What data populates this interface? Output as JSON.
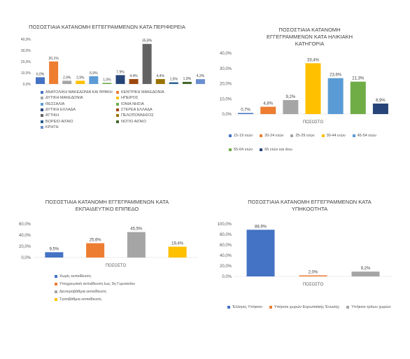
{
  "chart_data": [
    {
      "type": "bar",
      "title": "ΠΟΣΟΣΤΙΑΙΑ ΚΑΤΑΝΟΜΗ ΕΓΓΕΓΡΑΜΜΕΝΩΝ ΚΑΤΑ ΠΕΡΙΦΕΡΕΙΑ",
      "ylim": [
        0,
        40
      ],
      "yticks": [
        "0,0%",
        "10,0%",
        "20,0%",
        "30,0%",
        "40,0%"
      ],
      "grid": false,
      "legend_position": "bottom",
      "series": [
        {
          "name": "ΑΝΑΤΟΛΙΚΗ ΜΑΚΕΔΟΝΙΑ ΚΑΙ ΘΡΑΚΗ",
          "value": 6.0,
          "label": "6,0%",
          "color": "#4472C4"
        },
        {
          "name": "ΚΕΝΤΡΙΚΗ ΜΑΚΕΔΟΝΙΑ",
          "value": 20.1,
          "label": "20,1%",
          "color": "#ED7D31"
        },
        {
          "name": "ΔΥΤΙΚΗ ΜΑΚΕΔΟΝΙΑ",
          "value": 2.9,
          "label": "2,9%",
          "color": "#A5A5A5"
        },
        {
          "name": "ΗΠΕΙΡΟΣ",
          "value": 2.9,
          "label": "2,9%",
          "color": "#FFC000"
        },
        {
          "name": "ΘΕΣΣΑΛΙΑ",
          "value": 6.9,
          "label": "6,9%",
          "color": "#5B9BD5"
        },
        {
          "name": "ΙΟΝΙΑ ΝΗΣΙΑ",
          "value": 1.0,
          "label": "1,0%",
          "color": "#70AD47"
        },
        {
          "name": "ΔΥΤΙΚΗ ΕΛΛΑΔΑ",
          "value": 7.9,
          "label": "7,9%",
          "color": "#264478"
        },
        {
          "name": "ΣΤΕΡΕΑ ΕΛΛΑΔΑ",
          "value": 4.4,
          "label": "4,4%",
          "color": "#9E480E"
        },
        {
          "name": "ΑΤΤΙΚΗ",
          "value": 35.8,
          "label": "35,8%",
          "color": "#636363"
        },
        {
          "name": "ΠΕΛΟΠΟΝΝΗΣΟΣ",
          "value": 4.4,
          "label": "4,4%",
          "color": "#997300"
        },
        {
          "name": "ΒΟΡΕΙΟ ΑΙΓΑΙΟ",
          "value": 1.5,
          "label": "1,5%",
          "color": "#255E91"
        },
        {
          "name": "ΝΟΤΙΟ ΑΙΓΑΙΟ",
          "value": 1.9,
          "label": "1,9%",
          "color": "#43682B"
        },
        {
          "name": "ΚΡΗΤΗ",
          "value": 4.3,
          "label": "4,3%",
          "color": "#698ED0"
        }
      ]
    },
    {
      "type": "bar",
      "title": "ΠΟΣΟΣΤΙΑΙΑ ΚΑΤΑΝΟΜΗ ΕΓΓΕΓΡΑΜΜΕΝΩΝ ΚΑΤΑ ΗΛΙΚΙΑΚΗ ΚΑΤΗΓΟΡΙΑ",
      "xlabel": "ΠΟΣΟΣΤΟ",
      "ylim": [
        0,
        40
      ],
      "yticks": [
        "0,0%",
        "10,0%",
        "20,0%",
        "30,0%",
        "40,0%"
      ],
      "grid": false,
      "legend_position": "bottom",
      "series": [
        {
          "name": "15-19 ετών",
          "value": 0.7,
          "label": "0,7%",
          "color": "#4472C4"
        },
        {
          "name": "20-24 ετών",
          "value": 4.8,
          "label": "4,8%",
          "color": "#ED7D31"
        },
        {
          "name": "25-29 ετών",
          "value": 9.2,
          "label": "9,2%",
          "color": "#A5A5A5"
        },
        {
          "name": "30-44 ετών",
          "value": 33.4,
          "label": "33,4%",
          "color": "#FFC000"
        },
        {
          "name": "45-54 ετών",
          "value": 23.6,
          "label": "23,6%",
          "color": "#5B9BD5"
        },
        {
          "name": "55-64 ετών",
          "value": 21.3,
          "label": "21,3%",
          "color": "#70AD47"
        },
        {
          "name": "65 ετών και άνω",
          "value": 6.9,
          "label": "6,9%",
          "color": "#264478"
        }
      ]
    },
    {
      "type": "bar",
      "title": "ΠΟΣΟΣΤΙΑΙΑ ΚΑΤΑΝΟΜΗ ΕΓΓΕΓΡΑΜΜΕΝΩΝ ΚΑΤΑ ΕΚΠΑΙΔΕΥΤΙΚΟ ΕΠΙΠΕΔΟ",
      "xlabel": "ΠΟΣΟΣΤΟ",
      "ylim": [
        0,
        60
      ],
      "yticks": [
        "0,0%",
        "20,0%",
        "40,0%",
        "60,0%"
      ],
      "grid": false,
      "legend_position": "bottom",
      "series": [
        {
          "name": "Χωρίς εκπαίδευση",
          "value": 9.5,
          "label": "9,5%",
          "color": "#4472C4"
        },
        {
          "name": "Υποχρεωτική εκπαίδευση έως 3η Γυμνασίου",
          "value": 25.6,
          "label": "25,6%",
          "color": "#ED7D31"
        },
        {
          "name": "Δευτεροβάθμια εκπαίδευση",
          "value": 45.5,
          "label": "45,5%",
          "color": "#A5A5A5"
        },
        {
          "name": "Τριτοβάθμια εκπαίδευση",
          "value": 19.4,
          "label": "19,4%",
          "color": "#FFC000"
        }
      ]
    },
    {
      "type": "bar",
      "title": "ΠΟΣΟΣΤΙΑΙΑ ΚΑΤΑΝΟΜΗ ΕΓΓΕΓΡΑΜΜΕΝΩΝ ΚΑΤΑ ΥΠΗΚΟΟΤΗΤΑ",
      "xlabel": "ΠΟΣΟΣΤΟ",
      "ylim": [
        0,
        100
      ],
      "yticks": [
        "0,0%",
        "20,0%",
        "40,0%",
        "60,0%",
        "80,0%",
        "100,0%"
      ],
      "grid": false,
      "legend_position": "bottom",
      "series": [
        {
          "name": "Έλληνες Υπήκοοι",
          "value": 88.9,
          "label": "88,9%",
          "color": "#4472C4"
        },
        {
          "name": "Υπήκοοι χωρών Ευρωπαϊκής Ένωσης",
          "value": 2.0,
          "label": "2,0%",
          "color": "#ED7D31"
        },
        {
          "name": "Υπήκοοι τρίτων χωρών",
          "value": 9.2,
          "label": "9,2%",
          "color": "#A5A5A5"
        }
      ]
    }
  ]
}
